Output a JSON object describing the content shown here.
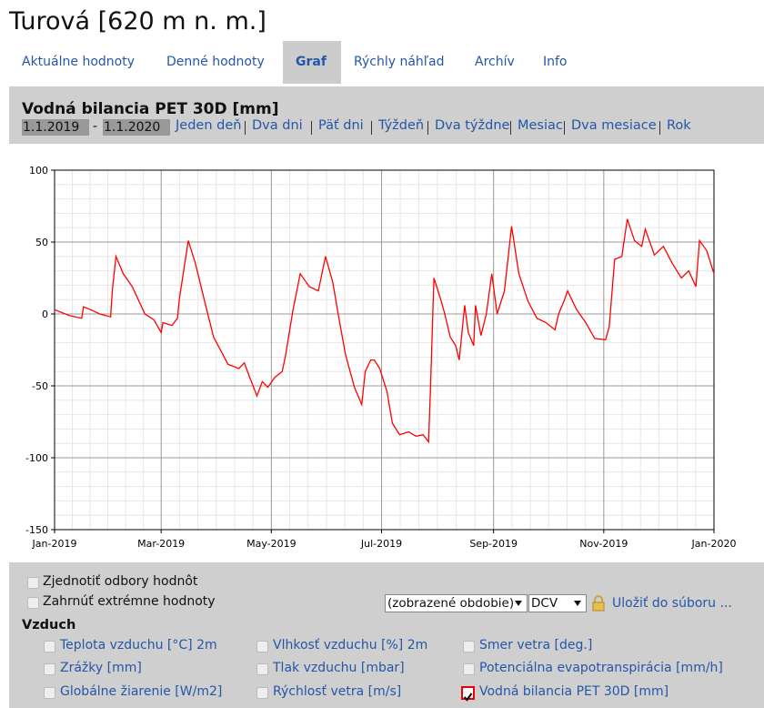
{
  "header": {
    "title": "Turová [620 m n. m.]"
  },
  "tabs": [
    "Aktuálne hodnoty",
    "Denné hodnoty",
    "Graf",
    "Rýchly náhľad",
    "Archív",
    "Info"
  ],
  "active_tab": 2,
  "panel": {
    "title": "Vodná bilancia PET 30D [mm]",
    "date_from": "1.1.2019",
    "date_separator": "-",
    "date_to": "1.1.2020",
    "range_links": [
      "Jeden deň",
      "Dva dni",
      "Päť dni",
      "Týždeň",
      "Dva týždne",
      "Mesiac",
      "Dva mesiace",
      "Rok"
    ]
  },
  "chart_data": {
    "type": "line",
    "color": "#ff0000",
    "grid": true,
    "x": [
      0,
      8,
      15,
      16,
      20,
      25,
      31,
      32,
      34,
      38,
      43,
      50,
      55,
      59,
      60,
      65,
      68,
      69,
      74,
      78,
      83,
      88,
      96,
      102,
      105,
      108,
      112,
      115,
      118,
      122,
      126,
      128,
      132,
      136,
      141,
      146,
      150,
      154,
      157,
      161,
      166,
      170,
      172,
      175,
      177,
      180,
      184,
      187,
      191,
      196,
      200,
      204,
      207,
      208,
      210,
      214,
      216,
      219,
      222,
      224,
      227,
      229,
      232,
      233,
      236,
      239,
      242,
      245,
      249,
      253,
      257,
      262,
      267,
      272,
      277,
      279,
      282,
      284,
      289,
      294,
      299,
      305,
      307,
      310,
      314,
      317,
      321,
      325,
      327,
      332,
      337,
      342,
      347,
      351,
      355,
      357,
      361,
      365
    ],
    "values": [
      3,
      -1,
      -3,
      5,
      3,
      0,
      -2,
      17,
      40,
      28,
      19,
      0,
      -4,
      -13,
      -6,
      -8,
      -3,
      10,
      51,
      35,
      9,
      -16,
      -35,
      -38,
      -34,
      -44,
      -57,
      -47,
      -51,
      -44,
      -40,
      -28,
      3,
      28,
      19,
      16,
      40,
      22,
      0,
      -28,
      -51,
      -63,
      -40,
      -32,
      -32,
      -38,
      -54,
      -76,
      -84,
      -82,
      -85,
      -84,
      -89,
      -54,
      25,
      9,
      0,
      -16,
      -22,
      -32,
      6,
      -13,
      -22,
      6,
      -15,
      0,
      28,
      0,
      16,
      61,
      28,
      9,
      -3,
      -6,
      -11,
      0,
      9,
      16,
      3,
      -6,
      -17,
      -18,
      -9,
      38,
      40,
      66,
      51,
      47,
      59,
      41,
      47,
      35,
      25,
      30,
      19,
      51,
      44,
      28
    ],
    "xlim": [
      0,
      365
    ],
    "xticks": [
      {
        "value": 0,
        "label": "Jan-2019"
      },
      {
        "value": 59,
        "label": "Mar-2019"
      },
      {
        "value": 120,
        "label": "May-2019"
      },
      {
        "value": 181,
        "label": "Jul-2019"
      },
      {
        "value": 243,
        "label": "Sep-2019"
      },
      {
        "value": 304,
        "label": "Nov-2019"
      },
      {
        "value": 365,
        "label": "Jan-2020"
      }
    ],
    "ylim": [
      -150,
      100
    ],
    "yticks": [
      -150,
      -100,
      -50,
      0,
      50,
      100
    ]
  },
  "options": [
    {
      "label": "Zjednotiť odbory hodnôt",
      "checked": false
    },
    {
      "label": "Zahrnúť extrémne hodnoty",
      "checked": false
    }
  ],
  "period_select": "(zobrazené obdobie)",
  "format_select": "DCV",
  "save_link": "Uložiť do súboru ...",
  "section": "Vzduch",
  "sensors": [
    {
      "label": "Teplota vzduchu [°C] 2m",
      "checked": false
    },
    {
      "label": "Vlhkosť vzduchu [%] 2m",
      "checked": false
    },
    {
      "label": "Smer vetra [deg.]",
      "checked": false
    },
    {
      "label": "Zrážky [mm]",
      "checked": false
    },
    {
      "label": "Tlak vzduchu [mbar]",
      "checked": false
    },
    {
      "label": "Potenciálna evapotranspirácia [mm/h]",
      "checked": false
    },
    {
      "label": "Globálne žiarenie [W/m2]",
      "checked": false
    },
    {
      "label": "Rýchlosť vetra [m/s]",
      "checked": false
    },
    {
      "label": "Vodná bilancia PET 30D [mm]",
      "checked": true
    }
  ]
}
